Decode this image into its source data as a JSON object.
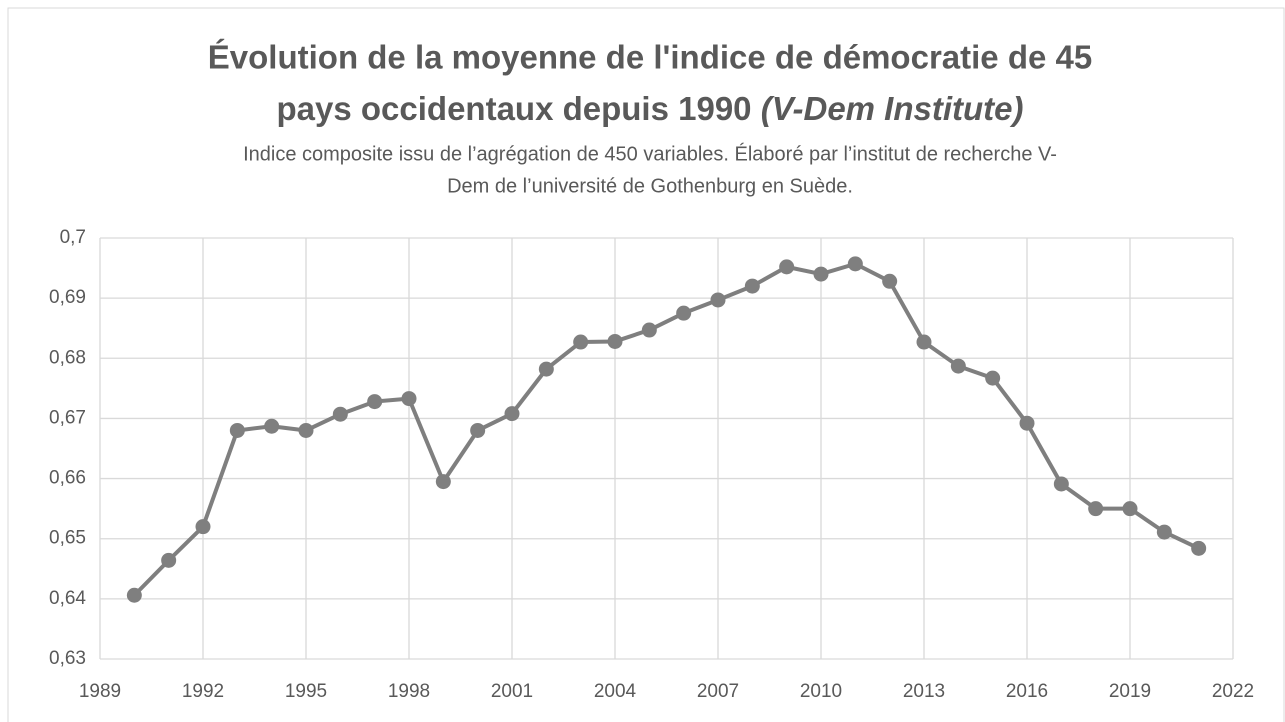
{
  "chart_data": {
    "type": "line",
    "title": [
      "Évolution de la moyenne de l'indice de démocratie de 45",
      "pays occidentaux depuis 1990"
    ],
    "title_source": "(V-Dem Institute)",
    "subtitle": [
      "Indice composite issu de l’agrégation de 450 variables. Élaboré par l’institut de recherche V-",
      "Dem de l’université de Gothenburg en Suède."
    ],
    "x": [
      1990,
      1991,
      1992,
      1993,
      1994,
      1995,
      1996,
      1997,
      1998,
      1999,
      2000,
      2001,
      2002,
      2003,
      2004,
      2005,
      2006,
      2007,
      2008,
      2009,
      2010,
      2011,
      2012,
      2013,
      2014,
      2015,
      2016,
      2017,
      2018,
      2019,
      2020,
      2021
    ],
    "values": [
      0.6406,
      0.6464,
      0.652,
      0.668,
      0.6687,
      0.668,
      0.6707,
      0.6728,
      0.6733,
      0.6595,
      0.668,
      0.6708,
      0.6782,
      0.6827,
      0.6828,
      0.6847,
      0.6875,
      0.6897,
      0.692,
      0.6952,
      0.694,
      0.6957,
      0.6928,
      0.6827,
      0.6787,
      0.6767,
      0.6692,
      0.6591,
      0.655,
      0.655,
      0.6511,
      0.6484
    ],
    "color": "#7f7f7f",
    "xlim": [
      1989,
      2022
    ],
    "xticks": [
      1989,
      1992,
      1995,
      1998,
      2001,
      2004,
      2007,
      2010,
      2013,
      2016,
      2019,
      2022
    ],
    "ylim": [
      0.63,
      0.7
    ],
    "yticks": [
      {
        "value": 0.63,
        "label": "0,63"
      },
      {
        "value": 0.64,
        "label": "0,64"
      },
      {
        "value": 0.65,
        "label": "0,65"
      },
      {
        "value": 0.66,
        "label": "0,66"
      },
      {
        "value": 0.67,
        "label": "0,67"
      },
      {
        "value": 0.68,
        "label": "0,68"
      },
      {
        "value": 0.69,
        "label": "0,69"
      },
      {
        "value": 0.7,
        "label": "0,7"
      }
    ],
    "grid": true
  }
}
